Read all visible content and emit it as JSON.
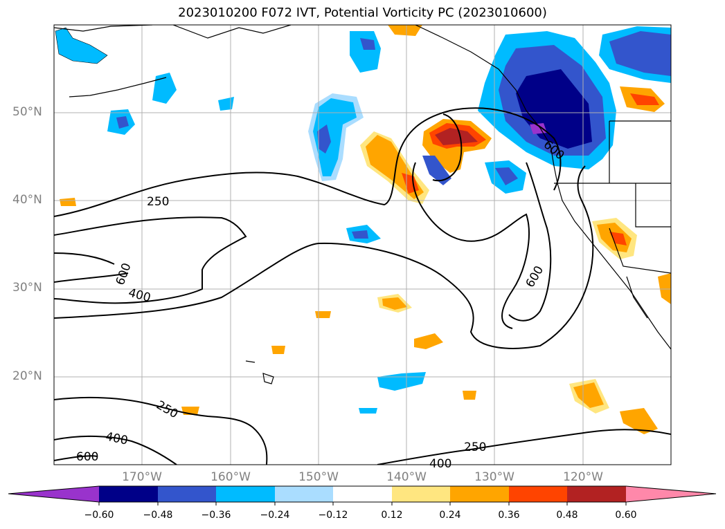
{
  "title": "2023010200 F072 IVT, Potential Vorticity PC (2023010600)",
  "latitude_labels": [
    "50°N",
    "40°N",
    "30°N",
    "20°N"
  ],
  "longitude_labels": [
    "170°W",
    "160°W",
    "150°W",
    "140°W",
    "130°W",
    "120°W"
  ],
  "contour_labels": [
    "250",
    "600",
    "400",
    "600",
    "600",
    "250",
    "400",
    "600",
    "250",
    "400"
  ],
  "colorbar": {
    "ticks": [
      "−0.60",
      "−0.48",
      "−0.36",
      "−0.24",
      "−0.12",
      "0.12",
      "0.24",
      "0.36",
      "0.48",
      "0.60"
    ],
    "colors": [
      "#9933cc",
      "#000088",
      "#3355cc",
      "#00bbff",
      "#aaddff",
      "#ffffff",
      "#ffe680",
      "#ffa500",
      "#ff4400",
      "#b22222",
      "#ff88aa"
    ]
  },
  "map_region": {
    "lon_range": [
      -180,
      -110
    ],
    "lat_range": [
      10,
      60
    ]
  }
}
